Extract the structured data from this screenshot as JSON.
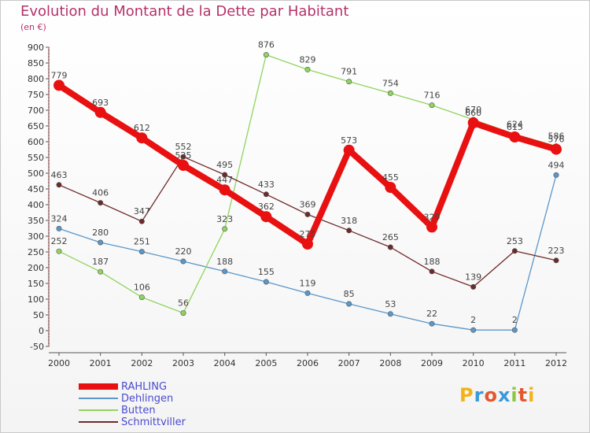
{
  "title": "Evolution du Montant de la Dette par Habitant",
  "subtitle": "(en €)",
  "logo": {
    "text": "Proxiti",
    "letters": [
      "P",
      "r",
      "o",
      "x",
      "i",
      "t",
      "i"
    ],
    "colors": [
      "#f2b21b",
      "#3a9ad9",
      "#e4572e",
      "#3a9ad9",
      "#8dc63f",
      "#e4572e",
      "#f2b21b"
    ]
  },
  "chart_data": {
    "type": "line",
    "title": "Evolution du Montant de la Dette par Habitant",
    "subtitle": "(en €)",
    "x": [
      "2000",
      "2001",
      "2002",
      "2003",
      "2004",
      "2005",
      "2006",
      "2007",
      "2008",
      "2009",
      "2010",
      "2011",
      "2012"
    ],
    "ylim": [
      -50,
      900
    ],
    "yticks": [
      -50,
      0,
      50,
      100,
      150,
      200,
      250,
      300,
      350,
      400,
      450,
      500,
      550,
      600,
      650,
      700,
      750,
      800,
      850,
      900
    ],
    "grid": false,
    "legend_position": "bottom-left",
    "series": [
      {
        "name": "RAHLING",
        "color": "#e81010",
        "values": [
          779,
          693,
          612,
          525,
          447,
          362,
          275,
          573,
          455,
          329,
          660,
          615,
          576
        ]
      },
      {
        "name": "Dehlingen",
        "color": "#5b97c9",
        "values": [
          324,
          280,
          251,
          220,
          188,
          155,
          119,
          85,
          53,
          22,
          2,
          2,
          494
        ]
      },
      {
        "name": "Butten",
        "color": "#8fd45d",
        "values": [
          252,
          187,
          106,
          56,
          323,
          876,
          829,
          791,
          754,
          716,
          670,
          624,
          586
        ]
      },
      {
        "name": "Schmittviller",
        "color": "#6e2a2a",
        "values": [
          463,
          406,
          347,
          552,
          495,
          433,
          369,
          318,
          265,
          188,
          139,
          253,
          223
        ]
      }
    ]
  }
}
